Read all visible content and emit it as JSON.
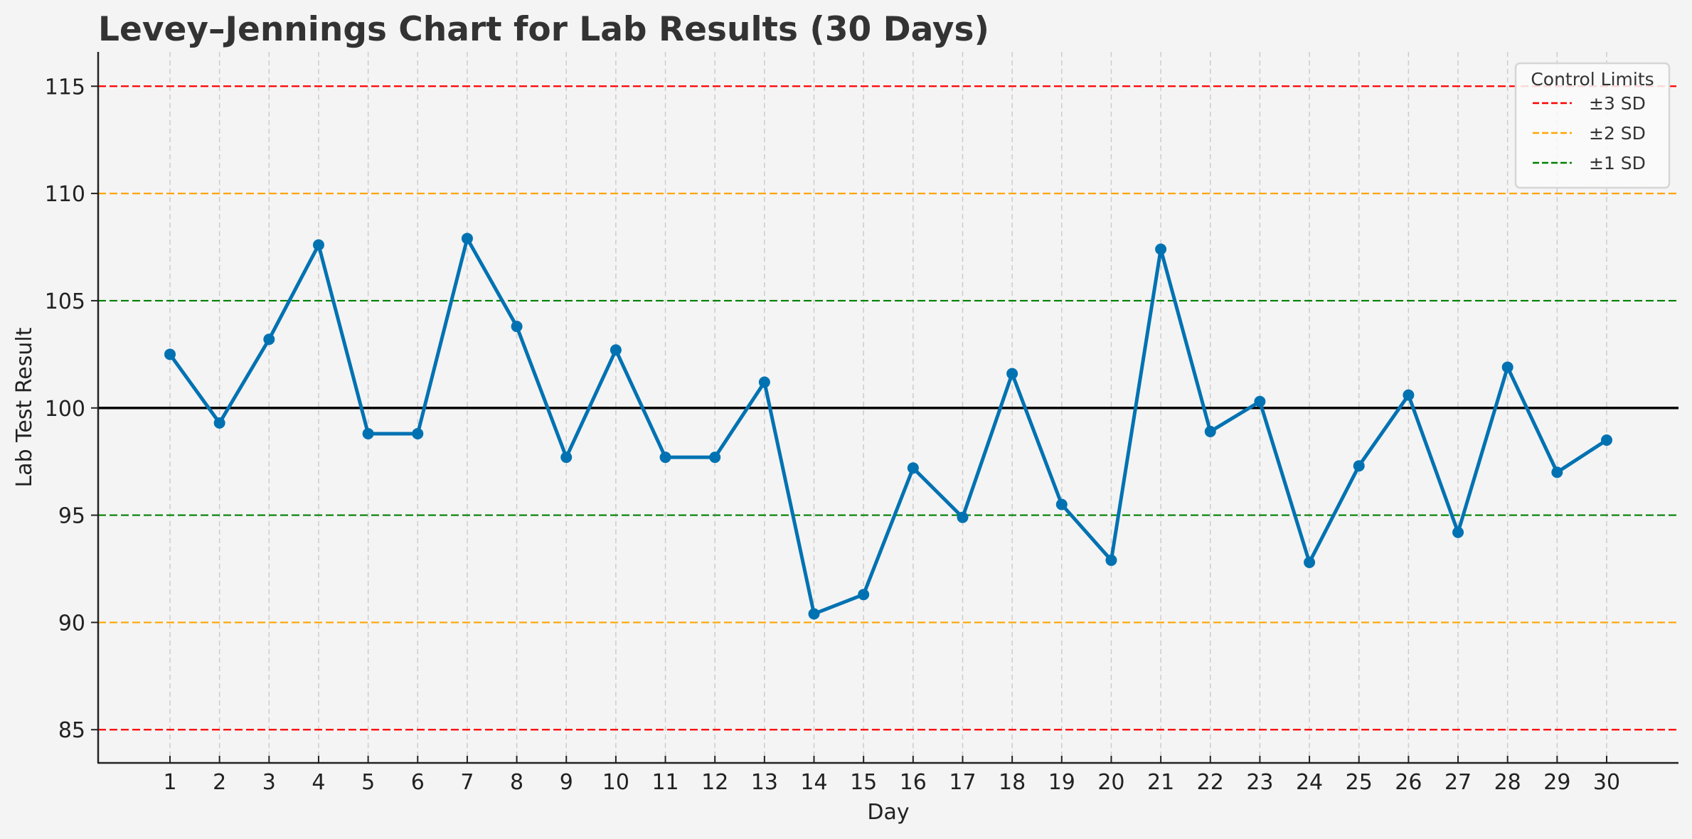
{
  "chart_data": {
    "type": "line",
    "title": "Levey–Jennings Chart for Lab Results (30 Days)",
    "xlabel": "Day",
    "ylabel": "Lab Test Result",
    "x": [
      1,
      2,
      3,
      4,
      5,
      6,
      7,
      8,
      9,
      10,
      11,
      12,
      13,
      14,
      15,
      16,
      17,
      18,
      19,
      20,
      21,
      22,
      23,
      24,
      25,
      26,
      27,
      28,
      29,
      30
    ],
    "series": [
      {
        "name": "Lab Test Result",
        "color": "#0072b2",
        "values": [
          102.5,
          99.3,
          103.2,
          107.6,
          98.8,
          98.8,
          107.9,
          103.8,
          97.7,
          102.7,
          97.7,
          97.7,
          101.2,
          90.4,
          91.3,
          97.2,
          94.9,
          101.6,
          95.5,
          92.9,
          107.4,
          98.9,
          100.3,
          92.8,
          97.3,
          100.6,
          94.2,
          101.9,
          97.0,
          98.5
        ]
      }
    ],
    "mean": 100,
    "sd": 5,
    "reference_lines": [
      {
        "label": "±3 SD",
        "values": [
          115,
          85
        ],
        "color": "#ff0000",
        "style": "dashed"
      },
      {
        "label": "±2 SD",
        "values": [
          110,
          90
        ],
        "color": "#ffa500",
        "style": "dashed"
      },
      {
        "label": "±1 SD",
        "values": [
          105,
          95
        ],
        "color": "#008000",
        "style": "dashed"
      },
      {
        "label": "Mean",
        "values": [
          100
        ],
        "color": "#000000",
        "style": "solid"
      }
    ],
    "yticks": [
      85,
      90,
      95,
      100,
      105,
      110,
      115
    ],
    "xticks": [
      1,
      2,
      3,
      4,
      5,
      6,
      7,
      8,
      9,
      10,
      11,
      12,
      13,
      14,
      15,
      16,
      17,
      18,
      19,
      20,
      21,
      22,
      23,
      24,
      25,
      26,
      27,
      28,
      29,
      30
    ],
    "xlim": [
      -0.45,
      31.45
    ],
    "ylim": [
      83.45,
      116.6
    ],
    "grid": {
      "x": true,
      "y": false,
      "style": "dashed",
      "color": "#cccccc"
    },
    "legend": {
      "title": "Control Limits",
      "position": "upper right",
      "entries": [
        {
          "label": "±3 SD",
          "color": "#ff0000"
        },
        {
          "label": "±2 SD",
          "color": "#ffa500"
        },
        {
          "label": "±1 SD",
          "color": "#008000"
        }
      ]
    }
  },
  "colors": {
    "background": "#f4f4f4",
    "axis": "#222222",
    "title": "#333333"
  }
}
